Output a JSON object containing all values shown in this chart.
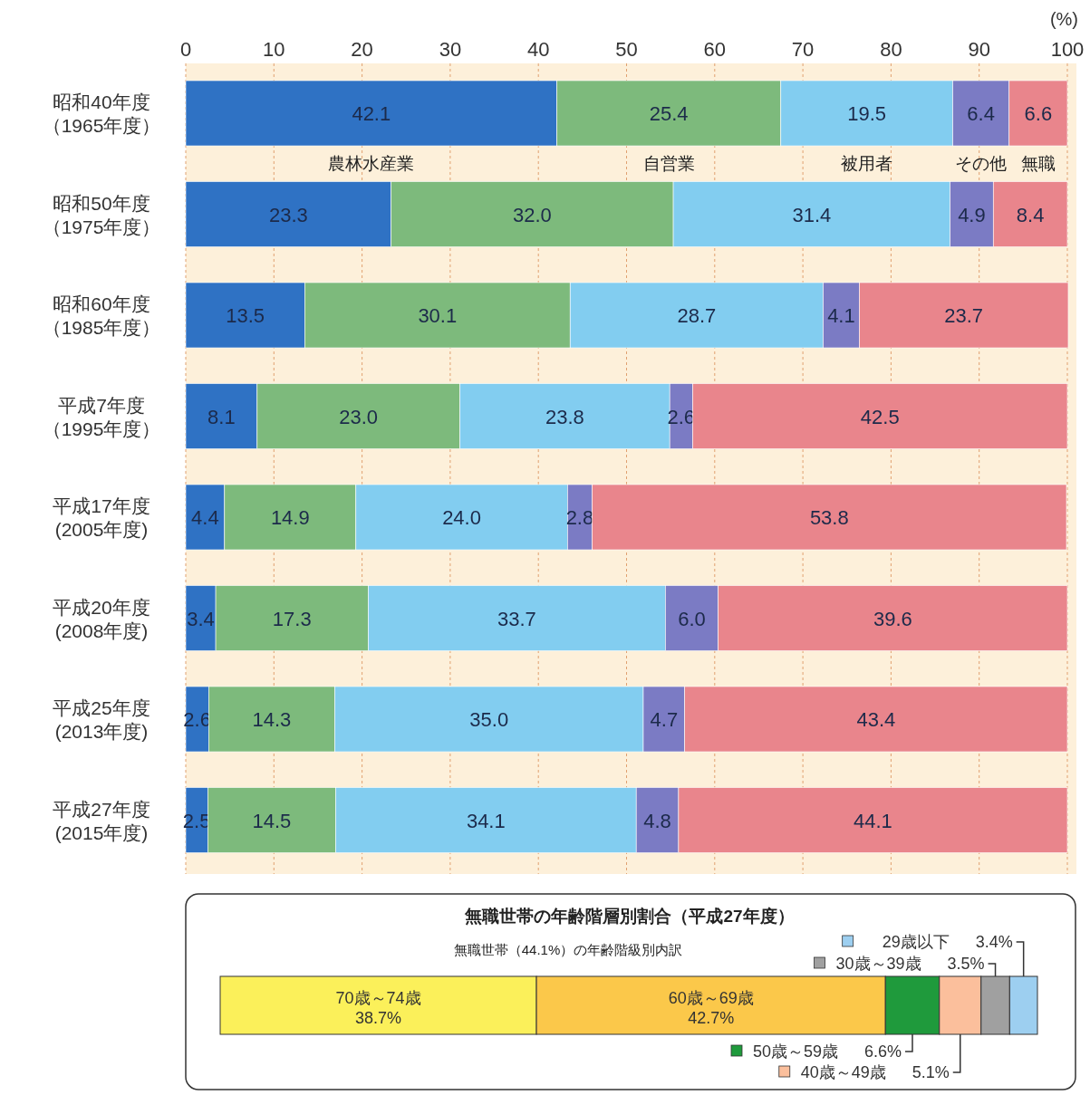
{
  "chart_data": [
    {
      "type": "bar",
      "stacked": true,
      "orientation": "horizontal",
      "xlabel": "(%)",
      "categories": [
        "昭和40年度（1965年度）",
        "昭和50年度（1975年度）",
        "昭和60年度（1985年度）",
        "平成7年度（1995年度）",
        "平成17年度(2005年度)",
        "平成20年度(2008年度)",
        "平成25年度(2013年度)",
        "平成27年度(2015年度)"
      ],
      "series": [
        {
          "name": "農林水産業",
          "color": "#2f72c4",
          "values": [
            42.1,
            23.3,
            13.5,
            8.1,
            4.4,
            3.4,
            2.6,
            2.5
          ],
          "value_labels": [
            "42.1",
            "23.3",
            "13.5",
            "8.1",
            "4.4",
            "3.4",
            "2.6",
            "2.5"
          ]
        },
        {
          "name": "自営業",
          "color": "#7dba7c",
          "values": [
            25.4,
            32.0,
            30.1,
            23.0,
            14.9,
            17.3,
            14.3,
            14.5
          ],
          "value_labels": [
            "25.4",
            "32.0",
            "30.1",
            "23.0",
            "14.9",
            "17.3",
            "14.3",
            "14.5"
          ]
        },
        {
          "name": "被用者",
          "color": "#82cdf0",
          "values": [
            19.5,
            31.4,
            28.7,
            23.8,
            24.0,
            33.7,
            35.0,
            34.1
          ],
          "value_labels": [
            "19.5",
            "31.4",
            "28.7",
            "23.8",
            "24.0",
            "33.7",
            "35.0",
            "34.1"
          ]
        },
        {
          "name": "その他",
          "color": "#7b7bc4",
          "values": [
            6.4,
            4.9,
            4.1,
            2.6,
            2.8,
            6.0,
            4.7,
            4.8
          ],
          "value_labels": [
            "6.4",
            "4.9",
            "4.1",
            "2.6",
            "2.8",
            "6.0",
            "4.7",
            "4.8"
          ]
        },
        {
          "name": "無職",
          "color": "#e9858c",
          "values": [
            6.6,
            8.4,
            23.7,
            42.5,
            53.8,
            39.6,
            43.4,
            44.1
          ],
          "value_labels": [
            "6.6",
            "8.4",
            "23.7",
            "42.5",
            "53.8",
            "39.6",
            "43.4",
            "44.1"
          ]
        }
      ],
      "xlim": [
        0,
        100
      ],
      "xticks": [
        0,
        10,
        20,
        30,
        40,
        50,
        60,
        70,
        80,
        90,
        100
      ],
      "grid": "x"
    },
    {
      "type": "bar",
      "stacked": true,
      "orientation": "horizontal",
      "title": "無職世帯の年齢階層別割合（平成27年度）",
      "subtitle": "無職世帯（44.1%）の年齢階級別内訳",
      "categories": [
        null
      ],
      "legend": "bottom right",
      "series": [
        {
          "name": "70歳～74歳",
          "color": "#fbf05a",
          "values": [
            38.7
          ],
          "value_labels": [
            "38.7%"
          ]
        },
        {
          "name": "60歳～69歳",
          "color": "#fbc84a",
          "values": [
            42.7
          ],
          "value_labels": [
            "42.7%"
          ]
        },
        {
          "name": "50歳～59歳",
          "color": "#1f9a3c",
          "values": [
            6.6
          ],
          "value_labels": [
            "6.6%"
          ]
        },
        {
          "name": "40歳～49歳",
          "color": "#fbbf9c",
          "values": [
            5.1
          ],
          "value_labels": [
            "5.1%"
          ]
        },
        {
          "name": "30歳～39歳",
          "color": "#a0a0a0",
          "values": [
            3.5
          ],
          "value_labels": [
            "3.5%"
          ]
        },
        {
          "name": "29歳以下",
          "color": "#9dcff0",
          "values": [
            3.4
          ],
          "value_labels": [
            "3.4%"
          ]
        }
      ]
    }
  ]
}
